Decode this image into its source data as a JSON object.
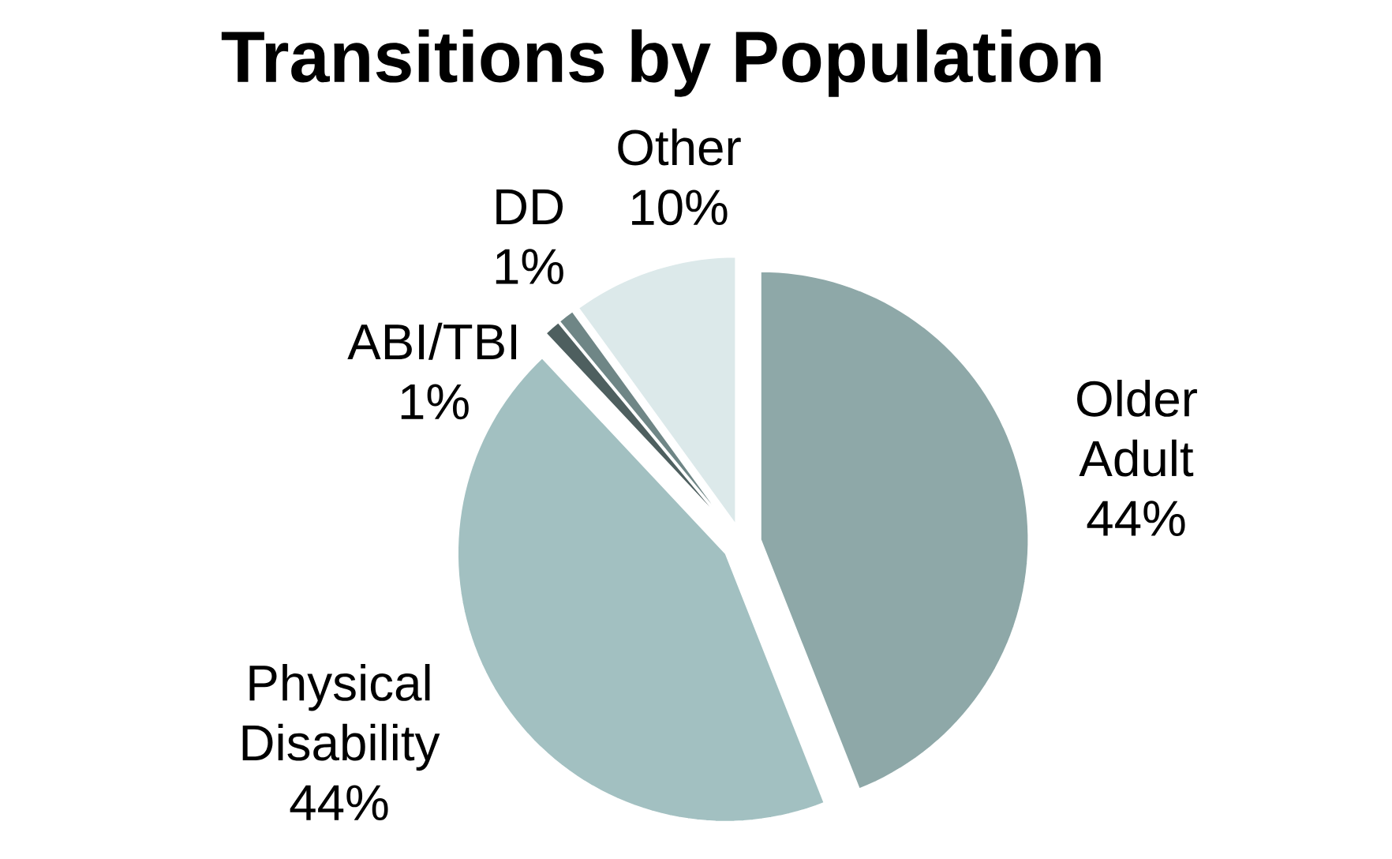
{
  "chart_data": {
    "type": "pie",
    "title": "Transitions by Population",
    "categories": [
      "Older Adult",
      "Physical Disability",
      "ABI/TBI",
      "DD",
      "Other"
    ],
    "values": [
      44,
      44,
      1,
      1,
      10
    ],
    "value_labels": [
      "44%",
      "44%",
      "1%",
      "1%",
      "10%"
    ],
    "colors": [
      "#8ea8a8",
      "#a2c0c1",
      "#4e5f5f",
      "#6f8686",
      "#dce9ea"
    ]
  }
}
